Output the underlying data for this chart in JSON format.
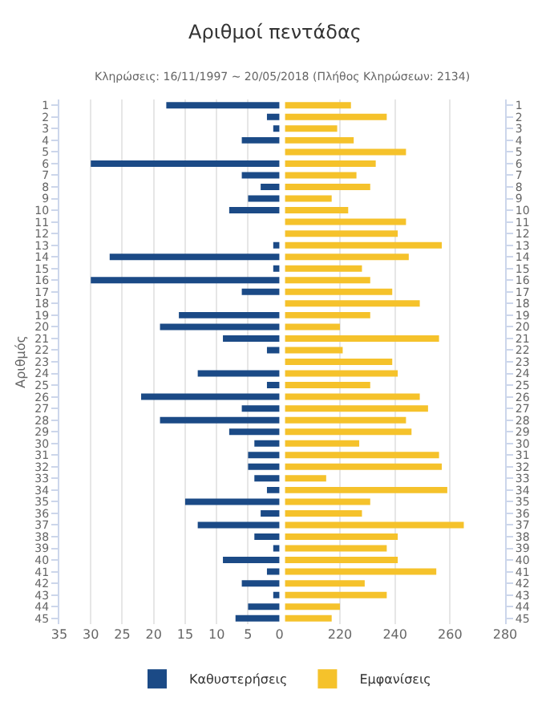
{
  "chart_data": [
    {
      "type": "bar",
      "orientation": "horizontal",
      "title": "Αριθμοί πεντάδας",
      "subtitle": "Κληρώσεις: 16/11/1997 ~ 20/05/2018 (Πλήθος Κληρώσεων: 2134)",
      "ylabel": "Αριθμός",
      "categories": [
        "1",
        "2",
        "3",
        "4",
        "5",
        "6",
        "7",
        "8",
        "9",
        "10",
        "11",
        "12",
        "13",
        "14",
        "15",
        "16",
        "17",
        "18",
        "19",
        "20",
        "21",
        "22",
        "23",
        "24",
        "25",
        "26",
        "27",
        "28",
        "29",
        "30",
        "31",
        "32",
        "33",
        "34",
        "35",
        "36",
        "37",
        "38",
        "39",
        "40",
        "41",
        "42",
        "43",
        "44",
        "45"
      ],
      "series": [
        {
          "name": "Καθυστερήσεις",
          "color": "#1b4a86",
          "values": [
            18,
            2,
            1,
            6,
            0,
            30,
            6,
            3,
            5,
            8,
            0,
            0,
            1,
            27,
            1,
            30,
            6,
            0,
            16,
            19,
            9,
            2,
            0,
            13,
            2,
            22,
            6,
            19,
            8,
            4,
            5,
            5,
            4,
            2,
            15,
            3,
            13,
            4,
            1,
            9,
            2,
            6,
            1,
            5,
            7
          ]
        }
      ],
      "xlim": [
        35,
        0
      ],
      "xticks": [
        35,
        30,
        25,
        20,
        15,
        10,
        5,
        0
      ],
      "grid": "x",
      "legend": "bottom"
    },
    {
      "type": "bar",
      "orientation": "horizontal",
      "categories": [
        "1",
        "2",
        "3",
        "4",
        "5",
        "6",
        "7",
        "8",
        "9",
        "10",
        "11",
        "12",
        "13",
        "14",
        "15",
        "16",
        "17",
        "18",
        "19",
        "20",
        "21",
        "22",
        "23",
        "24",
        "25",
        "26",
        "27",
        "28",
        "29",
        "30",
        "31",
        "32",
        "33",
        "34",
        "35",
        "36",
        "37",
        "38",
        "39",
        "40",
        "41",
        "42",
        "43",
        "44",
        "45"
      ],
      "series": [
        {
          "name": "Εμφανίσεις",
          "color": "#f5c22b",
          "values": [
            224,
            237,
            219,
            225,
            244,
            233,
            226,
            231,
            217,
            223,
            244,
            241,
            257,
            245,
            228,
            231,
            239,
            249,
            231,
            220,
            256,
            221,
            239,
            241,
            231,
            249,
            252,
            244,
            246,
            227,
            256,
            257,
            215,
            259,
            231,
            228,
            265,
            241,
            237,
            241,
            255,
            229,
            237,
            220,
            217
          ]
        }
      ],
      "xlim": [
        200,
        280
      ],
      "xticks": [
        220,
        240,
        260,
        280
      ],
      "grid": "x",
      "legend": "bottom"
    }
  ]
}
